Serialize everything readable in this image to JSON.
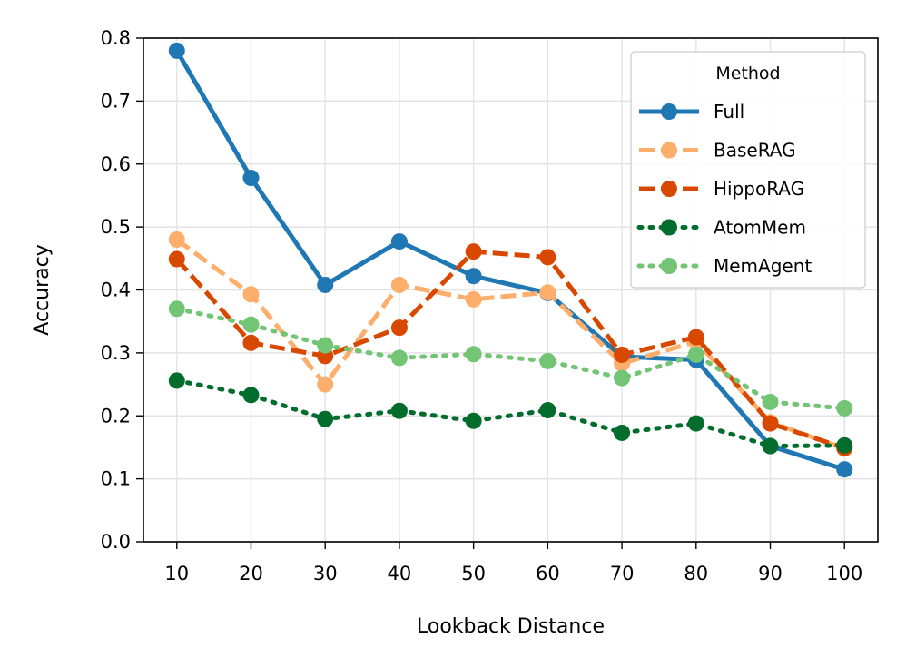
{
  "chart_data": {
    "type": "line",
    "title": "",
    "xlabel": "Lookback Distance",
    "ylabel": "Accuracy",
    "x": [
      10,
      20,
      30,
      40,
      50,
      60,
      70,
      80,
      90,
      100
    ],
    "x_tick_labels": [
      "10",
      "20",
      "30",
      "40",
      "50",
      "60",
      "70",
      "80",
      "90",
      "100"
    ],
    "xlim": [
      5.5,
      104.5
    ],
    "ylim": [
      0.0,
      0.8
    ],
    "y_ticks": [
      0.0,
      0.1,
      0.2,
      0.3,
      0.4,
      0.5,
      0.6,
      0.7,
      0.8
    ],
    "y_tick_labels": [
      "0.0",
      "0.1",
      "0.2",
      "0.3",
      "0.4",
      "0.5",
      "0.6",
      "0.7",
      "0.8"
    ],
    "grid": true,
    "legend": {
      "title": "Method",
      "placement": "top-right"
    },
    "series": [
      {
        "name": "Full",
        "color": "#1f77b4",
        "line_style": "solid",
        "values": [
          0.78,
          0.578,
          0.408,
          0.477,
          0.422,
          0.395,
          0.294,
          0.289,
          0.152,
          0.115
        ]
      },
      {
        "name": "BaseRAG",
        "color": "#fdae6b",
        "line_style": "dashed",
        "values": [
          0.48,
          0.393,
          0.25,
          0.408,
          0.385,
          0.396,
          0.283,
          0.318,
          0.19,
          0.148
        ]
      },
      {
        "name": "HippoRAG",
        "color": "#d94801",
        "line_style": "dashed",
        "values": [
          0.449,
          0.316,
          0.295,
          0.34,
          0.461,
          0.452,
          0.297,
          0.325,
          0.188,
          0.149
        ]
      },
      {
        "name": "AtomMem",
        "color": "#006d2c",
        "line_style": "dotted",
        "values": [
          0.256,
          0.233,
          0.195,
          0.208,
          0.192,
          0.209,
          0.173,
          0.188,
          0.152,
          0.153
        ]
      },
      {
        "name": "MemAgent",
        "color": "#74c476",
        "line_style": "dotted",
        "values": [
          0.37,
          0.345,
          0.312,
          0.292,
          0.298,
          0.287,
          0.26,
          0.297,
          0.222,
          0.212
        ]
      }
    ]
  }
}
